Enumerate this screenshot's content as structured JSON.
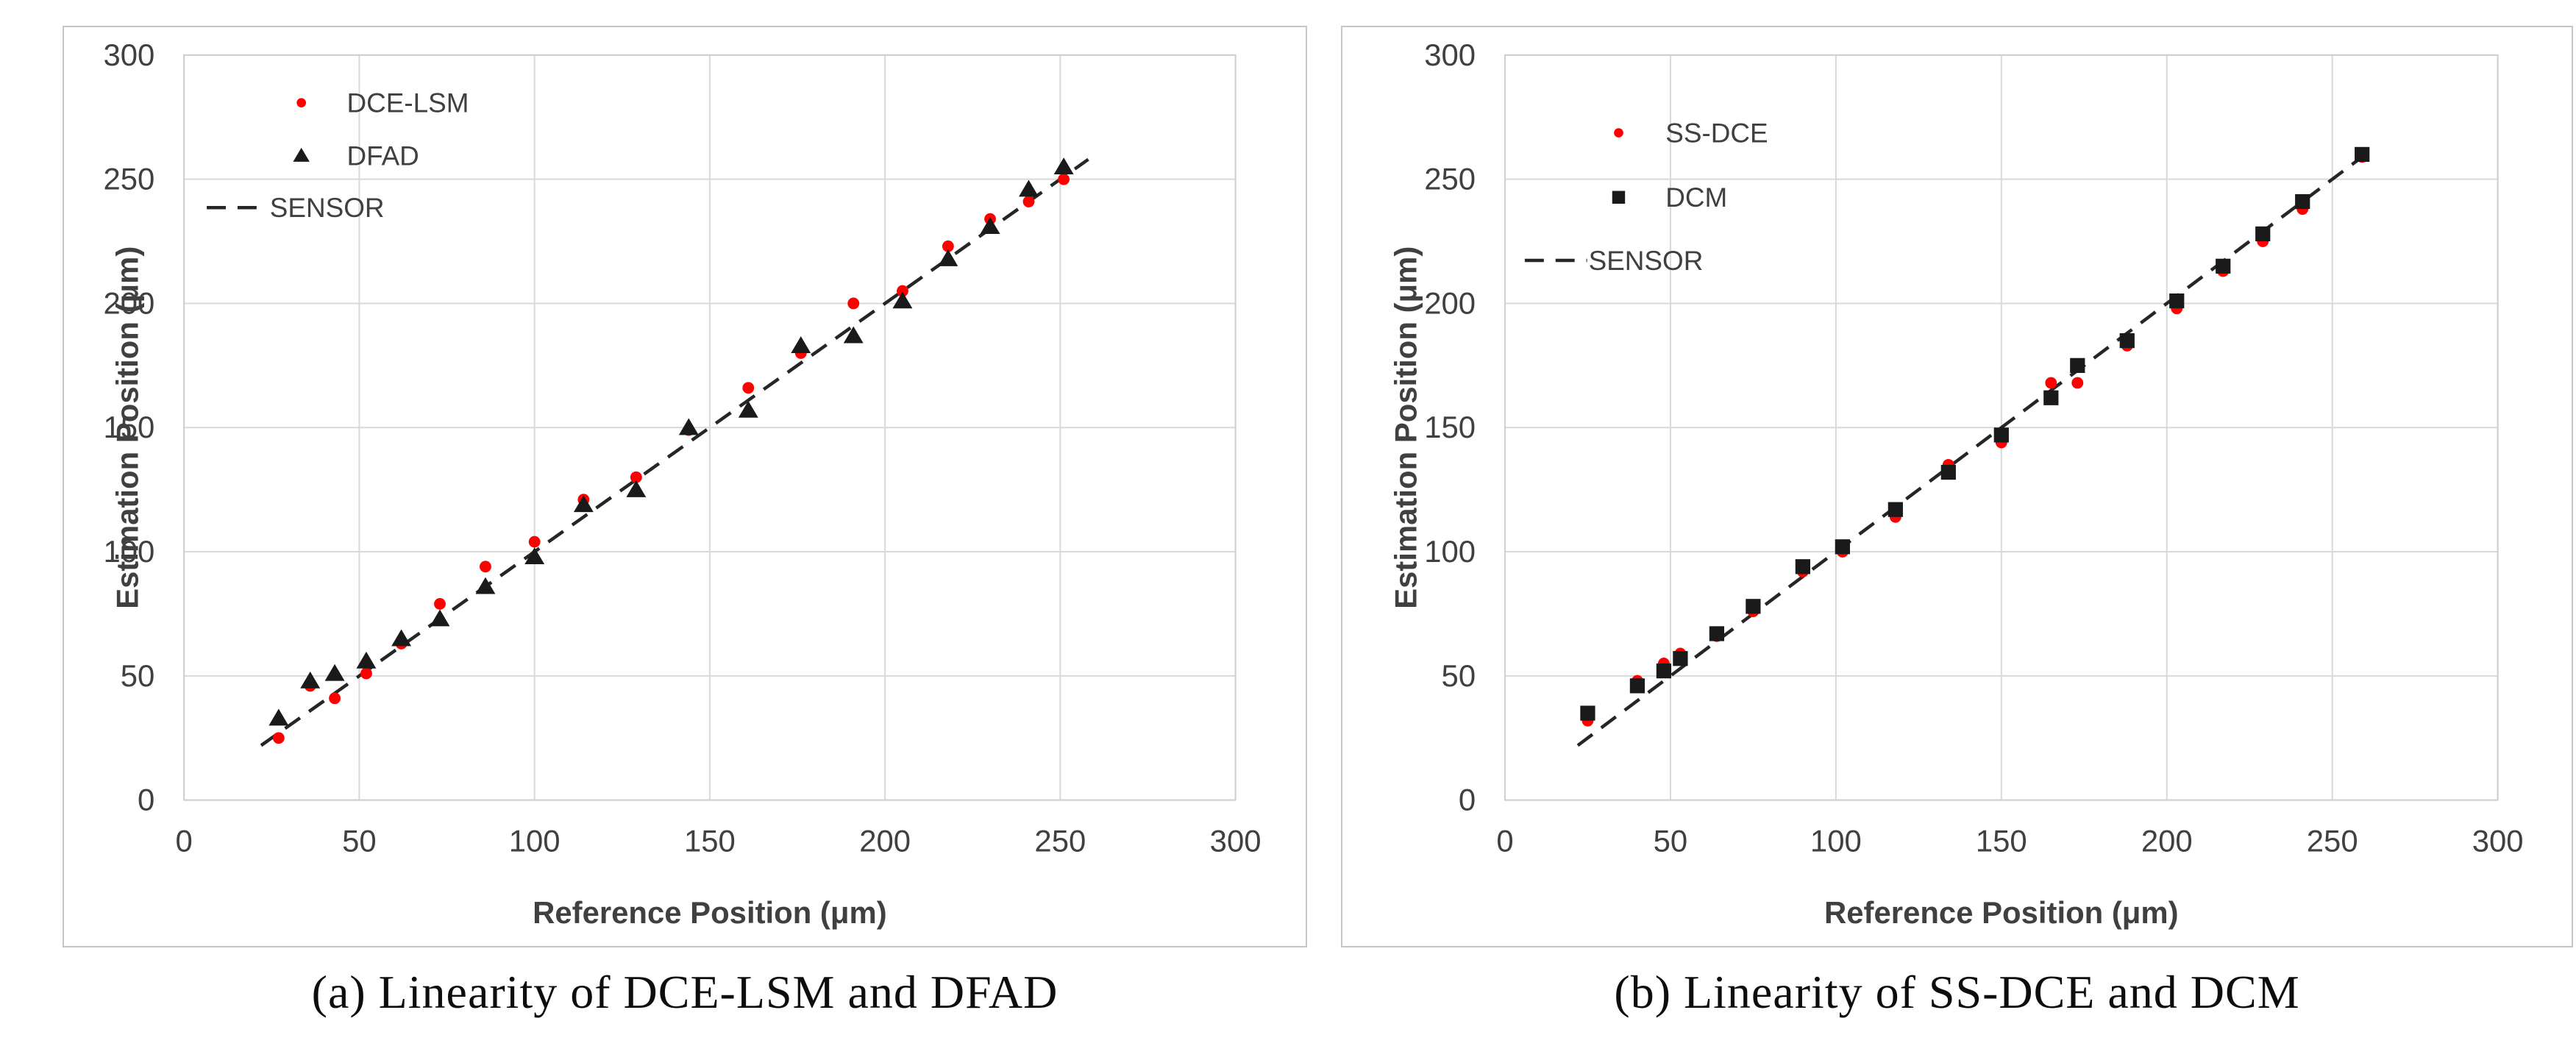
{
  "colors": {
    "red_marker": "#ff0000",
    "black_marker": "#1a1a1a",
    "sensor_line": "#262626",
    "gridline": "#d9d9d9",
    "frame": "#cfcfcf",
    "axis_text": "#404040",
    "caption_text": "#0d0d0d"
  },
  "chart_data": [
    {
      "type": "scatter",
      "panel": "a",
      "caption": "(a) Linearity of DCE-LSM and DFAD",
      "xlabel": "Reference Position  (μm)",
      "ylabel": "Estimation Position  (μm)",
      "xlim": [
        0,
        300
      ],
      "ylim": [
        0,
        300
      ],
      "x_ticks": [
        0,
        50,
        100,
        150,
        200,
        250,
        300
      ],
      "y_ticks": [
        0,
        50,
        100,
        150,
        200,
        250,
        300
      ],
      "grid": true,
      "legend_position": "top-left-inside",
      "series": [
        {
          "name": "DCE-LSM",
          "marker": "dot",
          "color": "#ff0000",
          "x": [
            27,
            36,
            43,
            52,
            62,
            73,
            86,
            100,
            114,
            129,
            144,
            161,
            176,
            191,
            205,
            218,
            230,
            241,
            251
          ],
          "y": [
            25,
            46,
            41,
            51,
            63,
            79,
            94,
            104,
            121,
            130,
            149,
            166,
            180,
            200,
            205,
            223,
            234,
            241,
            250
          ]
        },
        {
          "name": "DFAD",
          "marker": "triangle",
          "color": "#1a1a1a",
          "x": [
            27,
            36,
            43,
            52,
            62,
            73,
            86,
            100,
            114,
            129,
            144,
            161,
            176,
            191,
            205,
            218,
            230,
            241,
            251
          ],
          "y": [
            33,
            48,
            51,
            56,
            65,
            73,
            86,
            98,
            119,
            125,
            150,
            157,
            183,
            187,
            201,
            218,
            231,
            246,
            255
          ]
        },
        {
          "name": "SENSOR",
          "marker": "dashed-line",
          "color": "#262626",
          "line": [
            [
              22,
              22
            ],
            [
              258,
              258
            ]
          ]
        }
      ]
    },
    {
      "type": "scatter",
      "panel": "b",
      "caption": "(b) Linearity of SS-DCE and DCM",
      "xlabel": "Reference Position  (μm)",
      "ylabel": "Estimation Position  (μm)",
      "xlim": [
        0,
        300
      ],
      "ylim": [
        0,
        300
      ],
      "x_ticks": [
        0,
        50,
        100,
        150,
        200,
        250,
        300
      ],
      "y_ticks": [
        0,
        50,
        100,
        150,
        200,
        250,
        300
      ],
      "grid": true,
      "legend_position": "top-left-inside",
      "series": [
        {
          "name": "SS-DCE",
          "marker": "dot",
          "color": "#ff0000",
          "x": [
            25,
            40,
            48,
            53,
            64,
            75,
            90,
            102,
            118,
            134,
            150,
            165,
            173,
            188,
            203,
            217,
            229,
            241,
            259
          ],
          "y": [
            32,
            48,
            55,
            59,
            66,
            76,
            92,
            100,
            114,
            135,
            144,
            168,
            168,
            183,
            198,
            213,
            225,
            238,
            259
          ]
        },
        {
          "name": "DCM",
          "marker": "square",
          "color": "#1a1a1a",
          "x": [
            25,
            40,
            48,
            53,
            64,
            75,
            90,
            102,
            118,
            134,
            150,
            165,
            173,
            188,
            203,
            217,
            229,
            241,
            259
          ],
          "y": [
            35,
            46,
            52,
            57,
            67,
            78,
            94,
            102,
            117,
            132,
            147,
            162,
            175,
            185,
            201,
            215,
            228,
            241,
            260
          ]
        },
        {
          "name": "SENSOR",
          "marker": "dashed-line",
          "color": "#262626",
          "line": [
            [
              22,
              22
            ],
            [
              263,
              263
            ]
          ]
        }
      ]
    }
  ]
}
